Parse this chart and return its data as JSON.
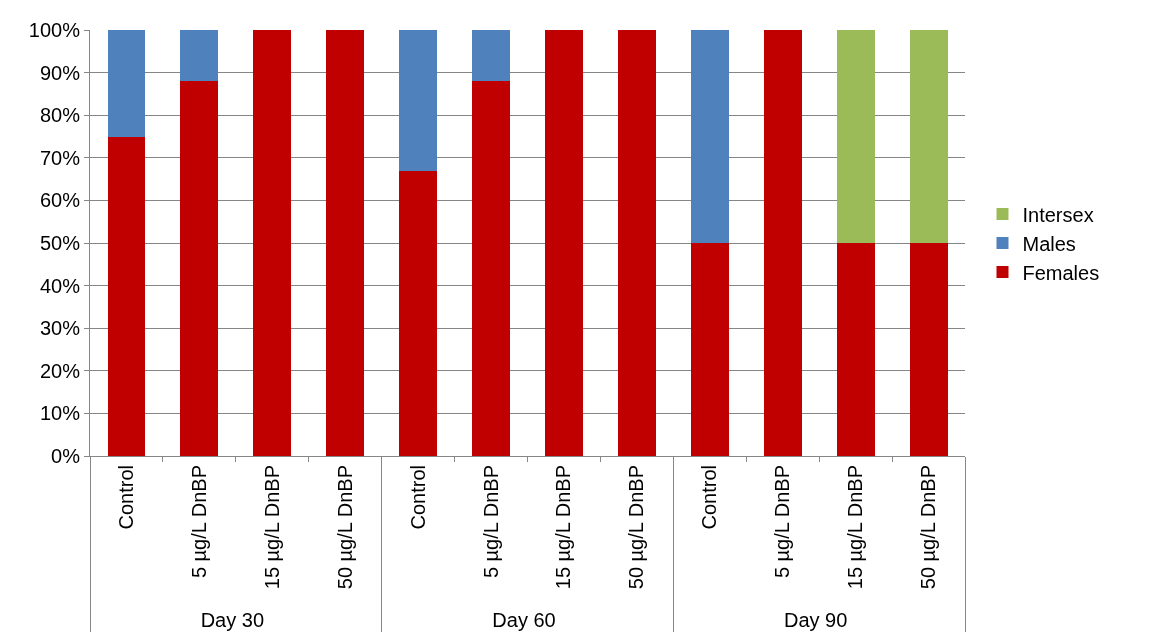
{
  "chart_data": {
    "type": "bar",
    "stacked": true,
    "categories": [
      "Control",
      "5 µg/L DnBP",
      "15 µg/L DnBP",
      "50 µg/L DnBP",
      "Control",
      "5 µg/L DnBP",
      "15 µg/L DnBP",
      "50 µg/L DnBP",
      "Control",
      "5 µg/L DnBP",
      "15 µg/L DnBP",
      "50 µg/L DnBP"
    ],
    "annotations": [
      "Day 30",
      "Day 60",
      "Day 90"
    ],
    "series": [
      {
        "name": "Females",
        "color": "#c00000",
        "values": [
          75,
          88,
          100,
          100,
          67,
          88,
          100,
          100,
          50,
          100,
          50,
          50
        ]
      },
      {
        "name": "Males",
        "color": "#4f81bd",
        "values": [
          25,
          12,
          0,
          0,
          33,
          12,
          0,
          0,
          50,
          0,
          0,
          0
        ]
      },
      {
        "name": "Intersex",
        "color": "#9bbb59",
        "values": [
          0,
          0,
          0,
          0,
          0,
          0,
          0,
          0,
          0,
          0,
          50,
          50
        ]
      }
    ],
    "ylim": [
      0,
      100
    ],
    "yticks": [
      {
        "value": 0,
        "label": "0%"
      },
      {
        "value": 10,
        "label": "10%"
      },
      {
        "value": 20,
        "label": "20%"
      },
      {
        "value": 30,
        "label": "30%"
      },
      {
        "value": 40,
        "label": "40%"
      },
      {
        "value": 50,
        "label": "50%"
      },
      {
        "value": 60,
        "label": "60%"
      },
      {
        "value": 70,
        "label": "70%"
      },
      {
        "value": 80,
        "label": "80%"
      },
      {
        "value": 90,
        "label": "90%"
      },
      {
        "value": 100,
        "label": "100%"
      }
    ],
    "grid": "y",
    "legend": "right"
  }
}
